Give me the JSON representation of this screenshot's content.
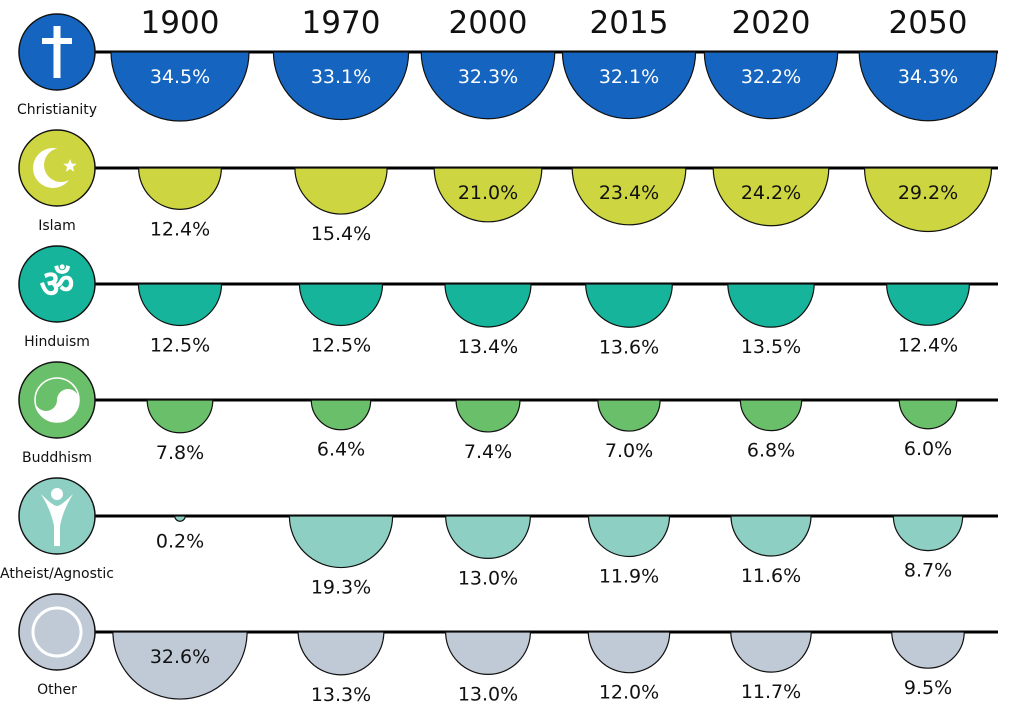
{
  "chart_data": {
    "type": "semicircle-grid",
    "unit": "%",
    "years": [
      "1900",
      "1970",
      "2000",
      "2015",
      "2020",
      "2050"
    ],
    "series": [
      {
        "name": "Christianity",
        "icon": "cross-icon",
        "color": "#1565c0",
        "values": [
          34.5,
          33.1,
          32.3,
          32.1,
          32.2,
          34.3
        ],
        "labels": [
          "34.5%",
          "33.1%",
          "32.3%",
          "32.1%",
          "32.2%",
          "34.3%"
        ],
        "label_inside": [
          true,
          true,
          true,
          true,
          true,
          true
        ]
      },
      {
        "name": "Islam",
        "icon": "star-and-crescent-icon",
        "color": "#cdd541",
        "values": [
          12.4,
          15.4,
          21.0,
          23.4,
          24.2,
          29.2
        ],
        "labels": [
          "12.4%",
          "15.4%",
          "21.0%",
          "23.4%",
          "24.2%",
          "29.2%"
        ],
        "label_inside": [
          false,
          false,
          true,
          true,
          true,
          true
        ]
      },
      {
        "name": "Hinduism",
        "icon": "om-icon",
        "color": "#16b49a",
        "values": [
          12.5,
          12.5,
          13.4,
          13.6,
          13.5,
          12.4
        ],
        "labels": [
          "12.5%",
          "12.5%",
          "13.4%",
          "13.6%",
          "13.5%",
          "12.4%"
        ],
        "label_inside": [
          false,
          false,
          false,
          false,
          false,
          false
        ]
      },
      {
        "name": "Buddhism",
        "icon": "yin-yang-icon",
        "color": "#6abf6a",
        "values": [
          7.8,
          6.4,
          7.4,
          7.0,
          6.8,
          6.0
        ],
        "labels": [
          "7.8%",
          "6.4%",
          "7.4%",
          "7.0%",
          "6.8%",
          "6.0%"
        ],
        "label_inside": [
          false,
          false,
          false,
          false,
          false,
          false
        ]
      },
      {
        "name": "Atheist/Agnostic",
        "icon": "happy-human-icon",
        "color": "#8ecfc4",
        "values": [
          0.2,
          19.3,
          13.0,
          11.9,
          11.6,
          8.7
        ],
        "labels": [
          "0.2%",
          "19.3%",
          "13.0%",
          "11.9%",
          "11.6%",
          "8.7%"
        ],
        "label_inside": [
          false,
          false,
          false,
          false,
          false,
          false
        ]
      },
      {
        "name": "Other",
        "icon": "circle-outline-icon",
        "color": "#c0cad6",
        "values": [
          32.6,
          13.3,
          13.0,
          12.0,
          11.7,
          9.5
        ],
        "labels": [
          "32.6%",
          "13.3%",
          "13.0%",
          "12.0%",
          "11.7%",
          "9.5%"
        ],
        "label_inside": [
          true,
          false,
          false,
          false,
          false,
          false
        ]
      }
    ]
  }
}
